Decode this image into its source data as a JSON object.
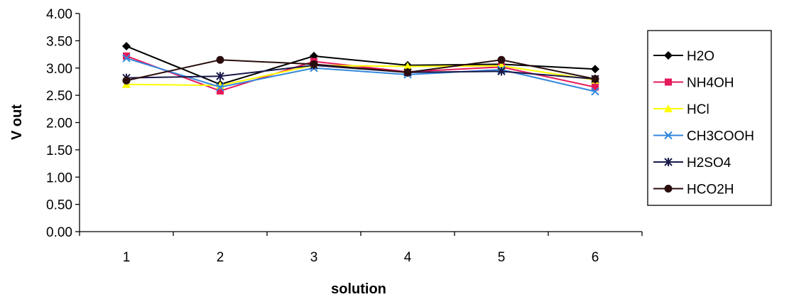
{
  "chart_data": {
    "type": "line",
    "title": "",
    "xlabel": "solution",
    "ylabel": "V out",
    "categories": [
      "1",
      "2",
      "3",
      "4",
      "5",
      "6"
    ],
    "ylim": [
      0,
      4
    ],
    "yticks": [
      "0.00",
      "0.50",
      "1.00",
      "1.50",
      "2.00",
      "2.50",
      "3.00",
      "3.50",
      "4.00"
    ],
    "grid": false,
    "legend_position": "right",
    "series": [
      {
        "name": "H2O",
        "color": "#000000",
        "marker": "diamond",
        "values": [
          3.4,
          2.7,
          3.22,
          3.05,
          3.07,
          2.98
        ]
      },
      {
        "name": "NH4OH",
        "color": "#e6195a",
        "marker": "square",
        "values": [
          3.22,
          2.58,
          3.12,
          2.93,
          3.02,
          2.65
        ]
      },
      {
        "name": "HCl",
        "color": "#ffff00",
        "marker": "triangle",
        "values": [
          2.7,
          2.68,
          3.05,
          3.03,
          3.04,
          2.78
        ]
      },
      {
        "name": "CH3COOH",
        "color": "#3388dd",
        "marker": "x",
        "values": [
          3.18,
          2.65,
          3.0,
          2.88,
          2.97,
          2.57
        ]
      },
      {
        "name": "H2SO4",
        "color": "#1a1a4a",
        "marker": "star",
        "values": [
          2.82,
          2.85,
          3.05,
          2.92,
          2.94,
          2.8
        ]
      },
      {
        "name": "HCO2H",
        "color": "#2a0d0d",
        "marker": "circle",
        "values": [
          2.77,
          3.15,
          3.07,
          2.92,
          3.15,
          2.8
        ]
      }
    ]
  }
}
